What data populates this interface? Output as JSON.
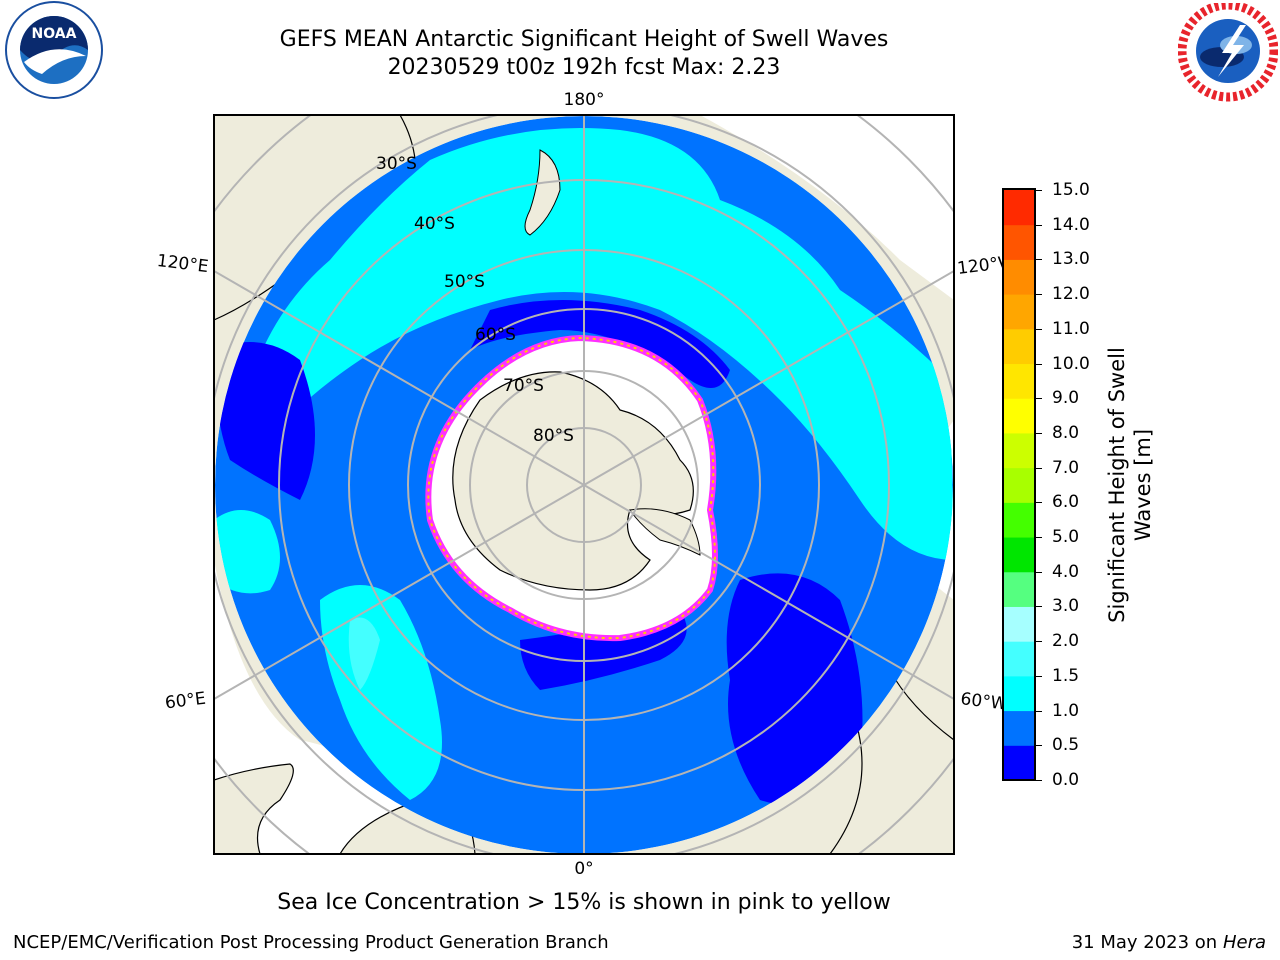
{
  "title": {
    "line1": "GEFS MEAN Antarctic Significant Height of Swell Waves",
    "line2": "20230529 t00z 192h fcst   Max: 2.23"
  },
  "logos": {
    "noaa": "NOAA",
    "noaa_ring": "NATIONAL OCEANIC AND ATMOSPHERIC ADMINISTRATION · U.S. DEPARTMENT OF COMMERCE",
    "nws_ring": "NATIONAL WEATHER SERVICE"
  },
  "map": {
    "projection": "south polar stereographic",
    "longitude_labels": {
      "top": "180°",
      "bottom": "0°",
      "left_upper": "120°E",
      "left_lower": "60°E",
      "right_upper": "120°W",
      "right_lower": "60°W"
    },
    "latitude_labels": [
      "30°S",
      "40°S",
      "50°S",
      "60°S",
      "70°S",
      "80°S"
    ],
    "colors": {
      "land": "#eeecdc",
      "ocean_0_0_5": "#0000ff",
      "ocean_0_5_1_0": "#0073ff",
      "ocean_1_0_1_5": "#00ffff",
      "ocean_1_5_2_0": "#44ffff",
      "sea_ice_edge": "#ff30ff",
      "sea_ice_inner": "#ffffff",
      "grid": "#b4b4b4"
    }
  },
  "colorbar": {
    "label": "Significant Height of Swell Waves [m]",
    "label_line1": "Significant Height of Swell",
    "label_line2": "Waves [m]",
    "ticks": [
      "0.0",
      "0.5",
      "1.0",
      "1.5",
      "2.0",
      "3.0",
      "4.0",
      "5.0",
      "6.0",
      "7.0",
      "8.0",
      "9.0",
      "10.0",
      "11.0",
      "12.0",
      "13.0",
      "14.0",
      "15.0"
    ],
    "colors": [
      "#0000ff",
      "#0073ff",
      "#00ffff",
      "#44ffff",
      "#a6ffff",
      "#55ff80",
      "#00e600",
      "#44ff00",
      "#a8ff00",
      "#ccff00",
      "#ffff00",
      "#ffe600",
      "#ffcc00",
      "#ffa600",
      "#ff8c00",
      "#ff5500",
      "#ff2a00"
    ]
  },
  "note": "Sea Ice Concentration > 15% is shown in pink to yellow",
  "footer": {
    "credit": "NCEP/EMC/Verification Post Processing Product Generation Branch",
    "date": "31 May 2023 on",
    "machine": "Hera"
  }
}
